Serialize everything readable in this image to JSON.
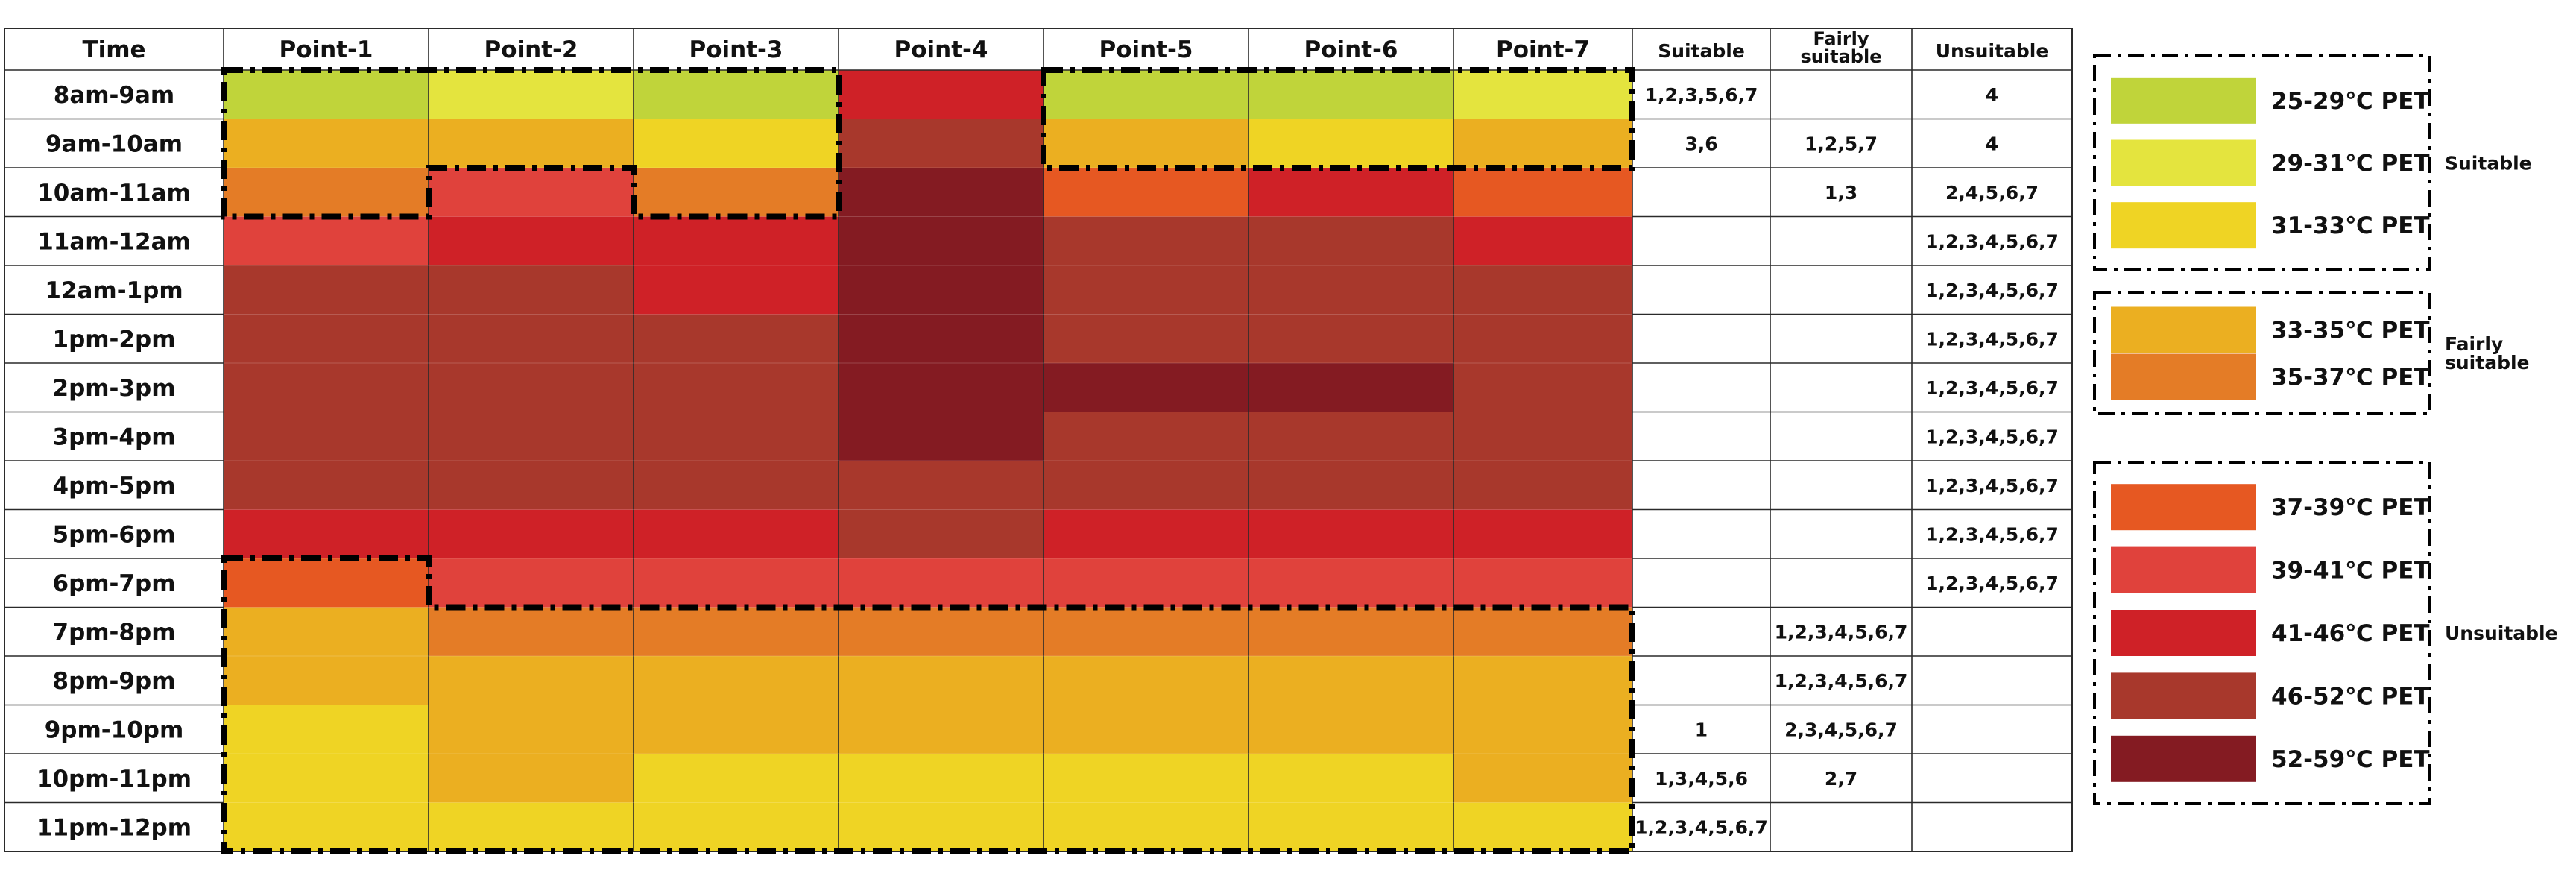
{
  "chart_data": {
    "type": "heatmap",
    "columns_header": "Time",
    "points": [
      "Point-1",
      "Point-2",
      "Point-3",
      "Point-4",
      "Point-5",
      "Point-6",
      "Point-7"
    ],
    "rows": [
      "8am-9am",
      "9am-10am",
      "10am-11am",
      "11am-12am",
      "12am-1pm",
      "1pm-2pm",
      "2pm-3pm",
      "3pm-4pm",
      "4pm-5pm",
      "5pm-6pm",
      "6pm-7pm",
      "7pm-8pm",
      "8pm-9pm",
      "9pm-10pm",
      "10pm-11pm",
      "11pm-12pm"
    ],
    "summary_headers": [
      "Suitable",
      "Fairly suitable",
      "Unsuitable"
    ],
    "pet_levels": [
      {
        "id": 0,
        "range": "25-29℃ PET",
        "color": "#c0d43a"
      },
      {
        "id": 1,
        "range": "29-31℃ PET",
        "color": "#e4e43e"
      },
      {
        "id": 2,
        "range": "31-33℃ PET",
        "color": "#efd424"
      },
      {
        "id": 3,
        "range": "33-35℃ PET",
        "color": "#ebaf21"
      },
      {
        "id": 4,
        "range": "35-37℃ PET",
        "color": "#e47c26"
      },
      {
        "id": 5,
        "range": "37-39℃ PET",
        "color": "#e65822"
      },
      {
        "id": 6,
        "range": "39-41℃ PET",
        "color": "#e0423c"
      },
      {
        "id": 7,
        "range": "41-46℃ PET",
        "color": "#cf2127"
      },
      {
        "id": 8,
        "range": "46-52℃ PET",
        "color": "#a8382c"
      },
      {
        "id": 9,
        "range": "52-59℃ PET",
        "color": "#841b22"
      }
    ],
    "legend_groups": [
      {
        "label": "Suitable",
        "levels": [
          0,
          1,
          2
        ]
      },
      {
        "label": "Fairly suitable",
        "levels": [
          3,
          4
        ]
      },
      {
        "label": "Unsuitable",
        "levels": [
          5,
          6,
          7,
          8,
          9
        ]
      }
    ],
    "values": [
      [
        0,
        1,
        0,
        7,
        0,
        0,
        1
      ],
      [
        3,
        3,
        2,
        8,
        3,
        2,
        3
      ],
      [
        4,
        6,
        4,
        9,
        5,
        7,
        5
      ],
      [
        6,
        7,
        7,
        9,
        8,
        8,
        7
      ],
      [
        8,
        8,
        7,
        9,
        8,
        8,
        8
      ],
      [
        8,
        8,
        8,
        9,
        8,
        8,
        8
      ],
      [
        8,
        8,
        8,
        9,
        9,
        9,
        8
      ],
      [
        8,
        8,
        8,
        9,
        8,
        8,
        8
      ],
      [
        8,
        8,
        8,
        8,
        8,
        8,
        8
      ],
      [
        7,
        7,
        7,
        8,
        7,
        7,
        7
      ],
      [
        5,
        6,
        6,
        6,
        6,
        6,
        6
      ],
      [
        3,
        4,
        4,
        4,
        4,
        4,
        4
      ],
      [
        3,
        3,
        3,
        3,
        3,
        3,
        3
      ],
      [
        2,
        3,
        3,
        3,
        3,
        3,
        3
      ],
      [
        2,
        3,
        2,
        2,
        2,
        2,
        3
      ],
      [
        2,
        2,
        2,
        2,
        2,
        2,
        2
      ]
    ],
    "suitable": [
      "1,2,3,5,6,7",
      "3,6",
      "",
      "",
      "",
      "",
      "",
      "",
      "",
      "",
      "",
      "",
      "",
      "1",
      "1,3,4,5,6",
      "1,2,3,4,5,6,7"
    ],
    "fairly_suitable": [
      "",
      "1,2,5,7",
      "1,3",
      "",
      "",
      "",
      "",
      "",
      "",
      "",
      "",
      "1,2,3,4,5,6,7",
      "1,2,3,4,5,6,7",
      "2,3,4,5,6,7",
      "2,7",
      ""
    ],
    "unsuitable": [
      "4",
      "4",
      "2,4,5,6,7",
      "1,2,3,4,5,6,7",
      "1,2,3,4,5,6,7",
      "1,2,3,4,5,6,7",
      "1,2,3,4,5,6,7",
      "1,2,3,4,5,6,7",
      "1,2,3,4,5,6,7",
      "1,2,3,4,5,6,7",
      "1,2,3,4,5,6,7",
      "",
      "",
      "",
      "",
      ""
    ],
    "grid": true,
    "legend_position": "right"
  }
}
